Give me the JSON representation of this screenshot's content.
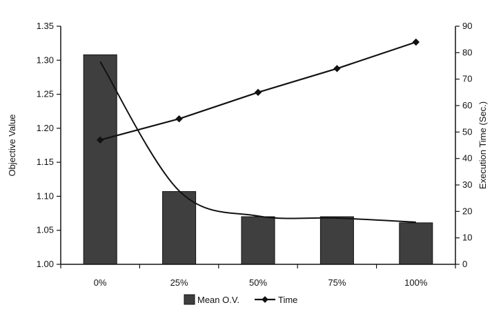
{
  "chart_data": {
    "type": "bar",
    "categories": [
      "0%",
      "25%",
      "50%",
      "75%",
      "100%"
    ],
    "series": [
      {
        "name": "Mean O.V.",
        "type": "bar",
        "axis": "left",
        "values": [
          1.308,
          1.107,
          1.07,
          1.07,
          1.061
        ]
      },
      {
        "name": "Time",
        "type": "line",
        "axis": "right",
        "values": [
          47,
          55,
          65,
          74,
          84
        ]
      }
    ],
    "trend_curve_left_axis": [
      1.298,
      1.108,
      1.071,
      1.068,
      1.062
    ],
    "ylabel": "Objective Value",
    "y2label": "Execution Time (Sec.)",
    "ylim": [
      1.0,
      1.35
    ],
    "y_ticks": [
      "1.00",
      "1.05",
      "1.10",
      "1.15",
      "1.20",
      "1.25",
      "1.30",
      "1.35"
    ],
    "y2lim": [
      0,
      90
    ],
    "y2_ticks": [
      "0",
      "10",
      "20",
      "30",
      "40",
      "50",
      "60",
      "70",
      "80",
      "90"
    ],
    "legend": [
      "Mean O.V.",
      "Time"
    ],
    "legend_position": "bottom",
    "grid": false,
    "colors": {
      "bar_fill": "#3f3f3f",
      "bar_stroke": "#111111",
      "line": "#111111",
      "marker": "#111111",
      "axis": "#111111",
      "text": "#111111"
    }
  }
}
